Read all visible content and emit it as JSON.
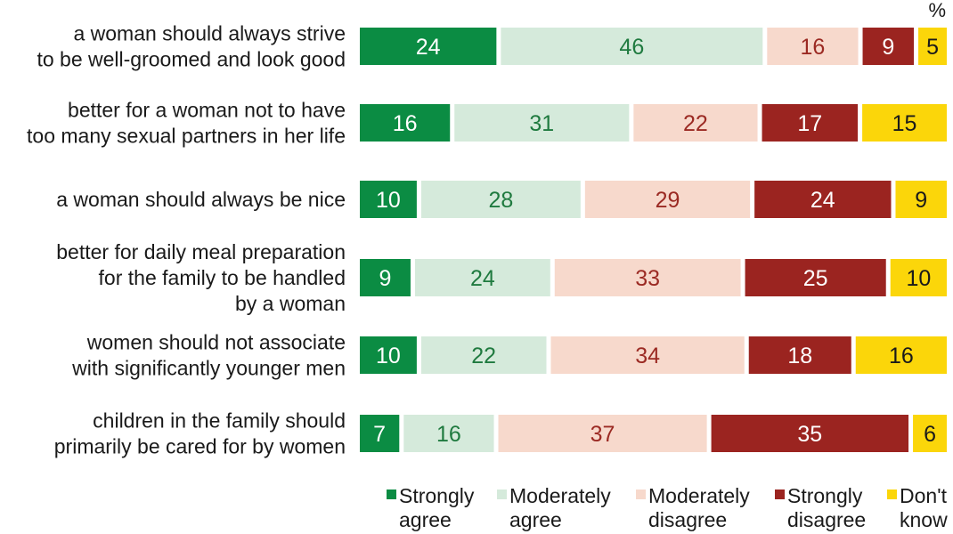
{
  "chart_data": {
    "type": "bar",
    "orientation": "horizontal",
    "stacked": true,
    "unit_label": "%",
    "categories": [
      [
        "a woman should always strive",
        "to be well-groomed and look good"
      ],
      [
        "better for a woman not to have",
        "too many sexual partners in her life"
      ],
      [
        "a woman should always be nice"
      ],
      [
        "better for daily meal preparation",
        "for the family to be handled",
        "by a woman"
      ],
      [
        "women should not associate",
        "with significantly younger men"
      ],
      [
        "children in the family should",
        "primarily be cared for by women"
      ]
    ],
    "series": [
      {
        "name": [
          "Strongly",
          "agree"
        ],
        "color": "#0b8c43",
        "text_color": "#ffffff",
        "values": [
          24,
          16,
          10,
          9,
          10,
          7
        ]
      },
      {
        "name": [
          "Moderately",
          "agree"
        ],
        "color": "#d5eadb",
        "text_color": "#1f7a3f",
        "values": [
          46,
          31,
          28,
          24,
          22,
          16
        ]
      },
      {
        "name": [
          "Moderately",
          "disagree"
        ],
        "color": "#f7d9cc",
        "text_color": "#9b2a23",
        "values": [
          16,
          22,
          29,
          33,
          34,
          37
        ]
      },
      {
        "name": [
          "Strongly",
          "disagree"
        ],
        "color": "#9b2420",
        "text_color": "#ffffff",
        "values": [
          9,
          17,
          24,
          25,
          18,
          35
        ]
      },
      {
        "name": [
          "Don't",
          "know"
        ],
        "color": "#fbd60a",
        "text_color": "#1a1a1a",
        "values": [
          5,
          15,
          9,
          10,
          16,
          6
        ]
      }
    ],
    "legend_position": "bottom-right",
    "grid": false
  }
}
